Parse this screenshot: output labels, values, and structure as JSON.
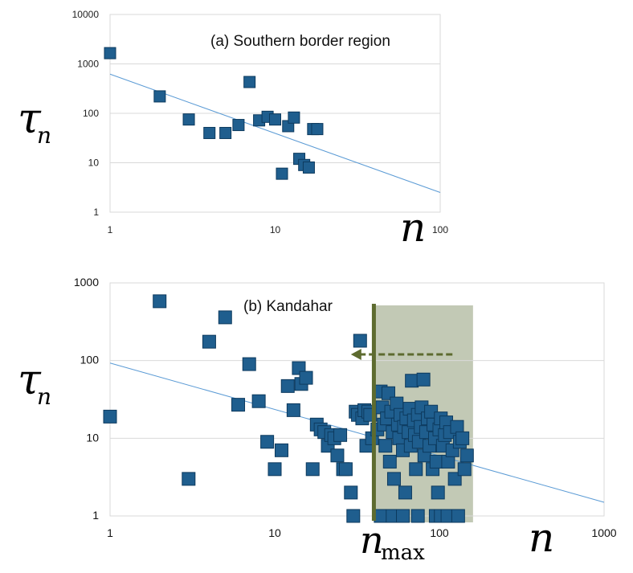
{
  "chart_data": [
    {
      "id": "a",
      "type": "scatter",
      "title": "(a) Southern border region",
      "xlabel": "n",
      "ylabel": "τ",
      "ylabel_subscript": "n",
      "x_scale": "log",
      "y_scale": "log",
      "xlim": [
        1,
        100
      ],
      "ylim": [
        1,
        10000
      ],
      "x_ticks": [
        "1",
        "10",
        "100"
      ],
      "y_ticks": [
        "1",
        "10",
        "100",
        "1000",
        "10000"
      ],
      "grid": "horizontal",
      "marker_color": "#1f5e8e",
      "line_color": "#5b9bd5",
      "fit_line": {
        "x": [
          1,
          100
        ],
        "y": [
          620,
          2.5
        ]
      },
      "points": [
        [
          1,
          1650
        ],
        [
          2,
          220
        ],
        [
          3,
          75
        ],
        [
          4,
          40
        ],
        [
          5,
          40
        ],
        [
          6,
          58
        ],
        [
          7,
          430
        ],
        [
          8,
          72
        ],
        [
          9,
          85
        ],
        [
          10,
          75
        ],
        [
          11,
          6
        ],
        [
          12,
          55
        ],
        [
          13,
          82
        ],
        [
          14,
          12
        ],
        [
          15,
          9
        ],
        [
          16,
          8
        ],
        [
          17,
          48
        ],
        [
          18,
          48
        ]
      ]
    },
    {
      "id": "b",
      "type": "scatter",
      "title": "(b) Kandahar",
      "xlabel": "n",
      "ylabel": "τ",
      "ylabel_subscript": "n",
      "x_scale": "log",
      "y_scale": "log",
      "xlim": [
        1,
        1000
      ],
      "ylim": [
        1,
        1000
      ],
      "x_ticks": [
        "1",
        "10",
        "100",
        "1000"
      ],
      "y_ticks": [
        "1",
        "10",
        "100",
        "1000"
      ],
      "grid": "horizontal",
      "marker_color": "#1f5e8e",
      "line_color": "#5b9bd5",
      "fit_line": {
        "x": [
          1,
          1000
        ],
        "y": [
          93,
          1.5
        ]
      },
      "nmax": 40,
      "nmax_label": "n",
      "nmax_subscript": "max",
      "nmax_color": "#5d6b2f",
      "shaded_region": {
        "x": [
          40,
          160
        ],
        "color": "#b7bfa8"
      },
      "arrow": {
        "from_x": 120,
        "to_x": 29,
        "y": 120
      },
      "points": [
        [
          1,
          19
        ],
        [
          2,
          580
        ],
        [
          3,
          3
        ],
        [
          4,
          175
        ],
        [
          5,
          360
        ],
        [
          6,
          27
        ],
        [
          7,
          90
        ],
        [
          8,
          30
        ],
        [
          9,
          9
        ],
        [
          10,
          4
        ],
        [
          11,
          7
        ],
        [
          12,
          47
        ],
        [
          13,
          23
        ],
        [
          14,
          80
        ],
        [
          14.5,
          50
        ],
        [
          15.5,
          60
        ],
        [
          17,
          4
        ],
        [
          18,
          15
        ],
        [
          19,
          13
        ],
        [
          20,
          12
        ],
        [
          21,
          8
        ],
        [
          22,
          11
        ],
        [
          23,
          10
        ],
        [
          24,
          6
        ],
        [
          25,
          11
        ],
        [
          26,
          4
        ],
        [
          27,
          4
        ],
        [
          29,
          2
        ],
        [
          30,
          1
        ],
        [
          31,
          22
        ],
        [
          32,
          20
        ],
        [
          33,
          180
        ],
        [
          34,
          18
        ],
        [
          35,
          23
        ],
        [
          36,
          8
        ],
        [
          37,
          22
        ],
        [
          38,
          20
        ],
        [
          39,
          10
        ],
        [
          42,
          13
        ],
        [
          44,
          40
        ],
        [
          45,
          25
        ],
        [
          46,
          15
        ],
        [
          47,
          8
        ],
        [
          48,
          18
        ],
        [
          49,
          38
        ],
        [
          50,
          5
        ],
        [
          51,
          22
        ],
        [
          52,
          12
        ],
        [
          53,
          3
        ],
        [
          55,
          28
        ],
        [
          56,
          15
        ],
        [
          57,
          10
        ],
        [
          58,
          20
        ],
        [
          60,
          7
        ],
        [
          61,
          14
        ],
        [
          62,
          2
        ],
        [
          63,
          18
        ],
        [
          65,
          12
        ],
        [
          66,
          24
        ],
        [
          67,
          8
        ],
        [
          68,
          55
        ],
        [
          70,
          17
        ],
        [
          71,
          11
        ],
        [
          72,
          4
        ],
        [
          74,
          20
        ],
        [
          75,
          9
        ],
        [
          77,
          14
        ],
        [
          78,
          25
        ],
        [
          80,
          57
        ],
        [
          81,
          6
        ],
        [
          83,
          12
        ],
        [
          85,
          18
        ],
        [
          87,
          8
        ],
        [
          89,
          22
        ],
        [
          91,
          4
        ],
        [
          92,
          15
        ],
        [
          94,
          10
        ],
        [
          96,
          5
        ],
        [
          98,
          2
        ],
        [
          100,
          13
        ],
        [
          102,
          18
        ],
        [
          105,
          8
        ],
        [
          108,
          11
        ],
        [
          110,
          16
        ],
        [
          113,
          5
        ],
        [
          116,
          12
        ],
        [
          120,
          7
        ],
        [
          124,
          3
        ],
        [
          128,
          14
        ],
        [
          133,
          9
        ],
        [
          138,
          10
        ],
        [
          142,
          4
        ],
        [
          147,
          6
        ],
        [
          44,
          1
        ],
        [
          52,
          1
        ],
        [
          60,
          1
        ],
        [
          74,
          1
        ],
        [
          95,
          1
        ],
        [
          102,
          1
        ],
        [
          112,
          1
        ],
        [
          130,
          1
        ]
      ]
    }
  ]
}
